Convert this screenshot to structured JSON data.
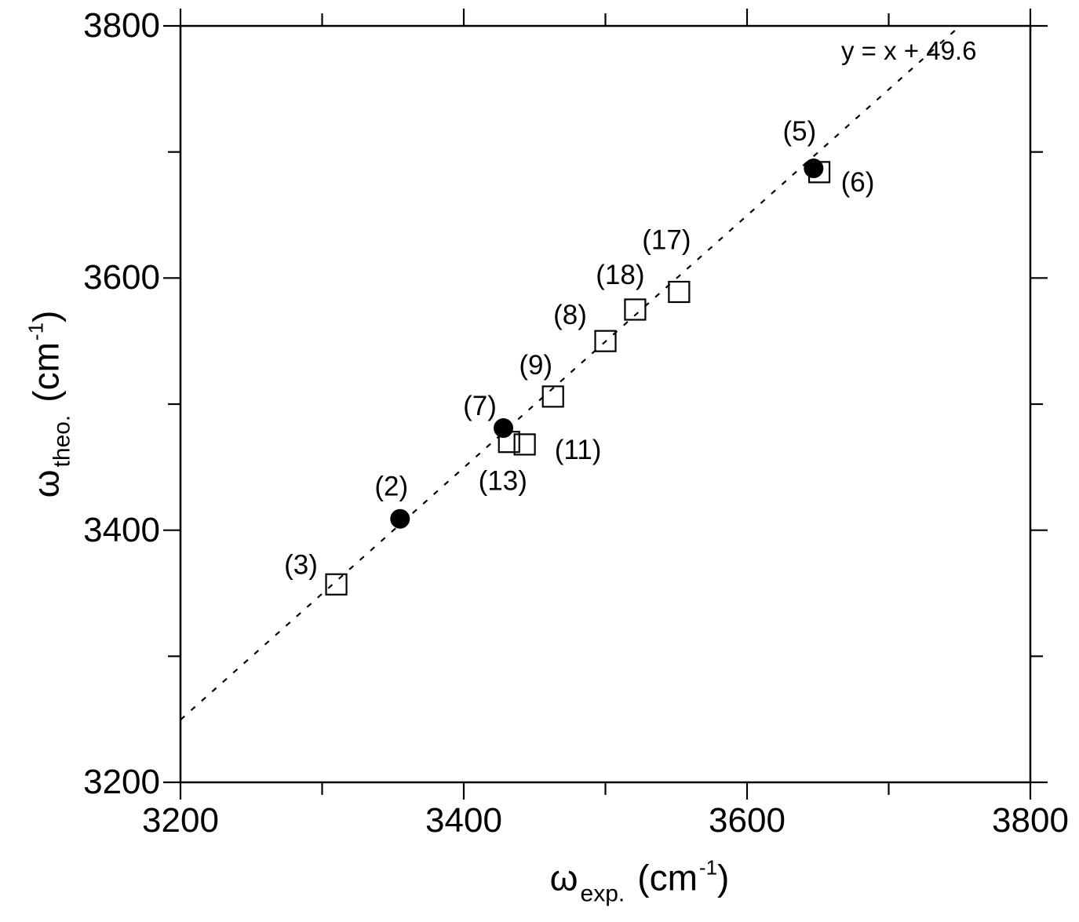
{
  "colors": {
    "background": "#ffffff",
    "ink": "#000000"
  },
  "chart_data": {
    "type": "scatter",
    "title": "",
    "xlabel": {
      "symbol": "ω",
      "subscript": "exp.",
      "unit_prefix": "(cm",
      "exponent": "-1",
      "unit_suffix": ")"
    },
    "ylabel": {
      "symbol": "ω",
      "subscript": "theo.",
      "unit_prefix": "(cm",
      "exponent": "-1",
      "unit_suffix": ")"
    },
    "xlim": [
      3200,
      3800
    ],
    "ylim": [
      3200,
      3800
    ],
    "xticks": [
      3200,
      3400,
      3600,
      3800
    ],
    "xticks_minor": [
      3300,
      3500,
      3700
    ],
    "yticks": [
      3200,
      3400,
      3600,
      3800
    ],
    "yticks_minor": [
      3300,
      3500,
      3700
    ],
    "grid": false,
    "legend": "none",
    "fit_line": {
      "equation": "y = x + 49.6",
      "slope": 1,
      "intercept": 49.6,
      "style": "dashed",
      "color": "#000000"
    },
    "series": [
      {
        "name": "filled-circles",
        "marker": "filled-circle",
        "color": "#000000",
        "points": [
          {
            "label": "(2)",
            "x": 3355,
            "y": 3409,
            "label_dx": -11,
            "label_dy": -41
          },
          {
            "label": "(7)",
            "x": 3428,
            "y": 3481,
            "label_dx": -30,
            "label_dy": -28
          },
          {
            "label": "(5)",
            "x": 3647,
            "y": 3687,
            "label_dx": -18,
            "label_dy": -47
          }
        ]
      },
      {
        "name": "open-squares",
        "marker": "open-square",
        "color": "#000000",
        "points": [
          {
            "label": "(3)",
            "x": 3310,
            "y": 3357,
            "label_dx": -45,
            "label_dy": -25
          },
          {
            "label": "(13)",
            "x": 3432,
            "y": 3470,
            "label_dx": -8,
            "label_dy": 50
          },
          {
            "label": "(11)",
            "x": 3443,
            "y": 3468,
            "label_dx": 68,
            "label_dy": 7
          },
          {
            "label": "(9)",
            "x": 3463,
            "y": 3506,
            "label_dx": -22,
            "label_dy": -40
          },
          {
            "label": "(8)",
            "x": 3500,
            "y": 3550,
            "label_dx": -45,
            "label_dy": -33
          },
          {
            "label": "(18)",
            "x": 3521,
            "y": 3575,
            "label_dx": -19,
            "label_dy": -44
          },
          {
            "label": "(17)",
            "x": 3552,
            "y": 3589,
            "label_dx": -16,
            "label_dy": -66
          },
          {
            "label": "(6)",
            "x": 3651,
            "y": 3684,
            "label_dx": 49,
            "label_dy": 13
          }
        ]
      }
    ]
  }
}
